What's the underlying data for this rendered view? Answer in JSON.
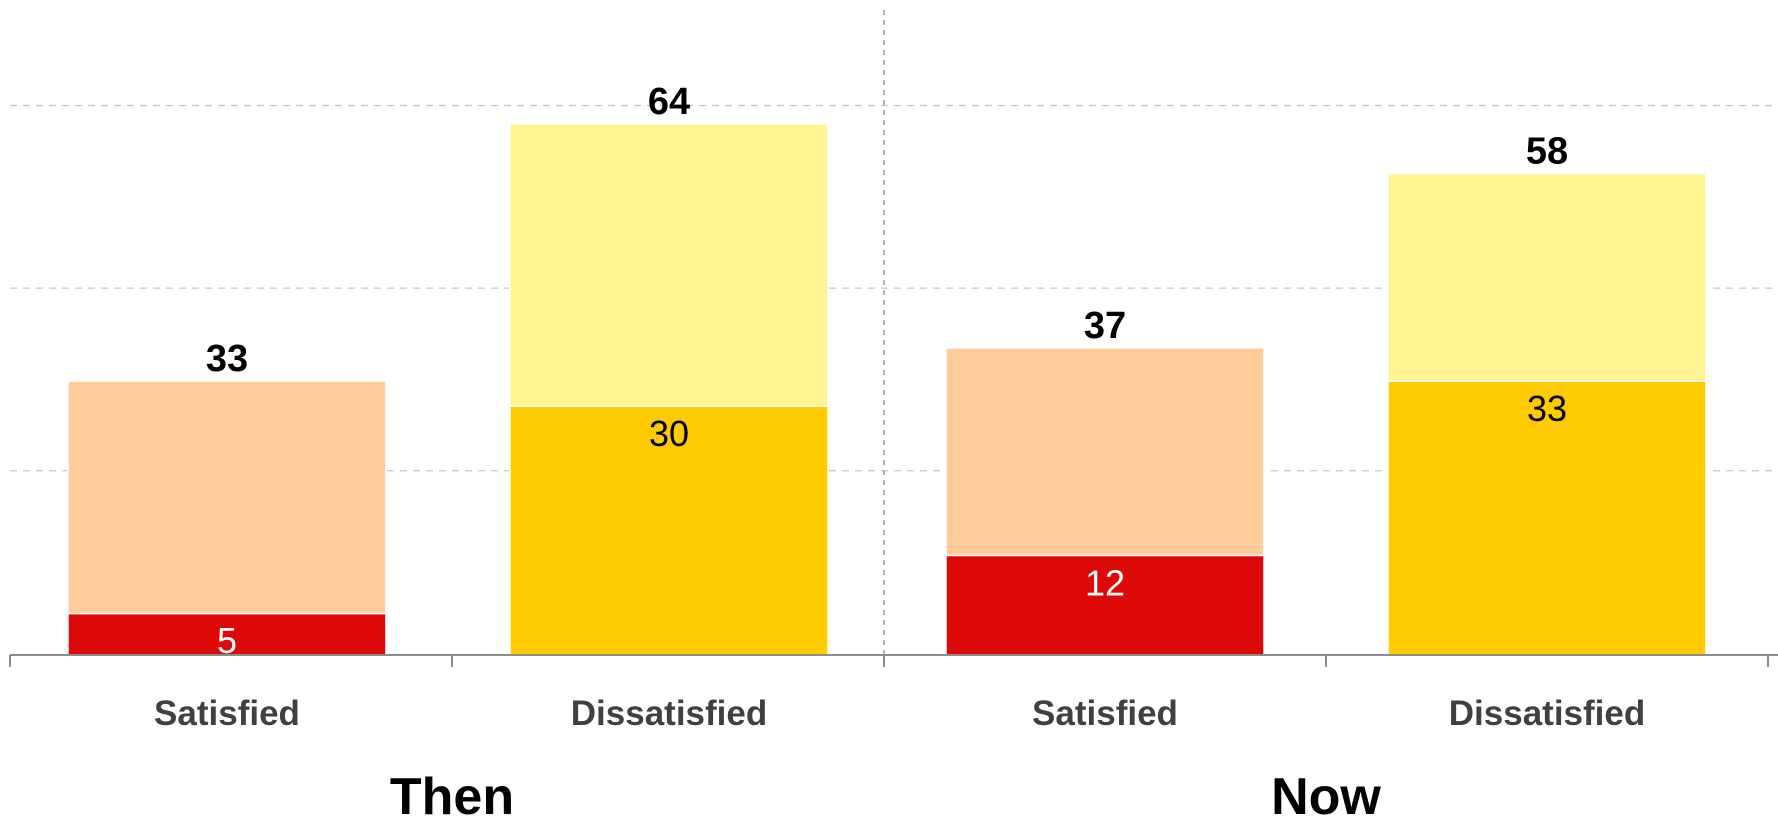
{
  "chart_data": {
    "type": "bar",
    "stacked": true,
    "grid": true,
    "ylim": [
      0,
      70
    ],
    "groups": [
      {
        "label": "Then",
        "bars": [
          {
            "category": "Satisfied",
            "total": 33,
            "segments": [
              {
                "value": 5,
                "color": "#dd0808",
                "label": "5",
                "label_color": "#ffffff"
              },
              {
                "value": 28,
                "color": "#ffcb99",
                "label": "",
                "label_color": "#000000"
              }
            ]
          },
          {
            "category": "Dissatisfied",
            "total": 64,
            "segments": [
              {
                "value": 30,
                "color": "#ffcb00",
                "label": "30",
                "label_color": "#000000"
              },
              {
                "value": 34,
                "color": "#fff48f",
                "label": "",
                "label_color": "#000000"
              }
            ]
          }
        ]
      },
      {
        "label": "Now",
        "bars": [
          {
            "category": "Satisfied",
            "total": 37,
            "segments": [
              {
                "value": 12,
                "color": "#dd0808",
                "label": "12",
                "label_color": "#ffffff"
              },
              {
                "value": 25,
                "color": "#ffcb99",
                "label": "",
                "label_color": "#000000"
              }
            ]
          },
          {
            "category": "Dissatisfied",
            "total": 58,
            "segments": [
              {
                "value": 33,
                "color": "#ffcb00",
                "label": "33",
                "label_color": "#000000"
              },
              {
                "value": 25,
                "color": "#fff48f",
                "label": "",
                "label_color": "#000000"
              }
            ]
          }
        ]
      }
    ]
  }
}
